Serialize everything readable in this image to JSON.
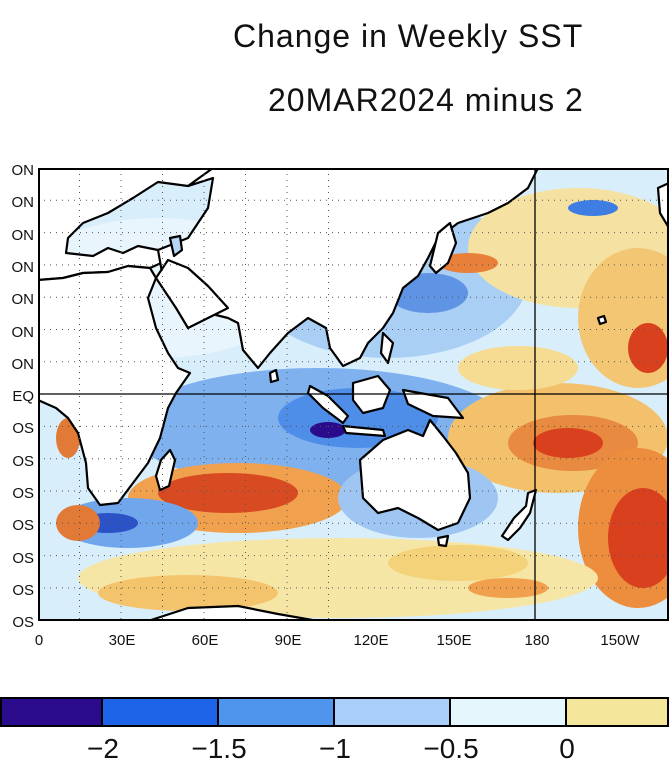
{
  "title": "Change in Weekly SST",
  "subtitle": "20MAR2024 minus 2",
  "latitude_labels": [
    "ON",
    "ON",
    "ON",
    "ON",
    "ON",
    "ON",
    "ON",
    "EQ",
    "OS",
    "OS",
    "OS",
    "OS",
    "OS",
    "OS",
    "OS"
  ],
  "longitude_labels": [
    "0",
    "30E",
    "60E",
    "90E",
    "120E",
    "150E",
    "180",
    "150W"
  ],
  "colorbar": {
    "labels": [
      "−2",
      "−1.5",
      "−1",
      "−0.5",
      "0"
    ],
    "colors": [
      "#2a0b8c",
      "#1e64e8",
      "#4f95ee",
      "#a9cef7",
      "#e6f6fd",
      "#f4e79c"
    ]
  },
  "palette": {
    "deep_blue": "#2a0b8c",
    "blue": "#3e82e6",
    "light_blue": "#8fbff3",
    "pale_blue": "#cfe8fa",
    "pale_yellow": "#f6efb8",
    "yellow": "#f5d372",
    "orange": "#f2a14a",
    "red": "#d8401e",
    "land": "#ffffff"
  }
}
